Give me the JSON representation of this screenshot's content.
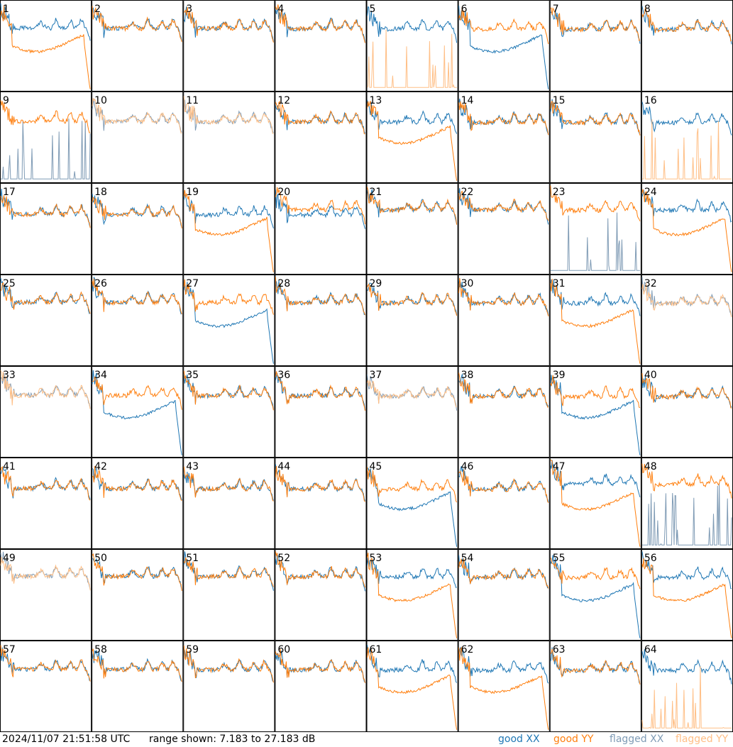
{
  "chart_data": {
    "type": "line",
    "grid": {
      "rows": 8,
      "cols": 8
    },
    "panels": [
      1,
      2,
      3,
      4,
      5,
      6,
      7,
      8,
      9,
      10,
      11,
      12,
      13,
      14,
      15,
      16,
      17,
      18,
      19,
      20,
      21,
      22,
      23,
      24,
      25,
      26,
      27,
      28,
      29,
      30,
      31,
      32,
      33,
      34,
      35,
      36,
      37,
      38,
      39,
      40,
      41,
      42,
      43,
      44,
      45,
      46,
      47,
      48,
      49,
      50,
      51,
      52,
      53,
      54,
      55,
      56,
      57,
      58,
      59,
      60,
      61,
      62,
      63,
      64
    ],
    "flags": {
      "flagged_both": [
        10,
        11,
        32,
        33,
        37,
        49
      ],
      "flagged_xx": [
        9,
        23,
        48
      ],
      "flagged_yy": [
        5,
        16,
        64
      ],
      "xx_drop": [
        6,
        27,
        34,
        39,
        45,
        55
      ],
      "yy_drop": [
        1,
        13,
        19,
        24,
        31,
        47,
        53,
        56,
        61,
        62
      ]
    },
    "timestamp": "2024/11/07 21:51:58 UTC",
    "range_text": "range shown: 7.183 to 27.183 dB",
    "range_db": [
      7.183,
      27.183
    ],
    "legend": [
      {
        "prefix": "good",
        "pol": "XX",
        "color": "#1f77b4"
      },
      {
        "prefix": "good",
        "pol": "YY",
        "color": "#ff7f0e"
      },
      {
        "prefix": "flagged",
        "pol": "XX",
        "color": "#7f9bb5"
      },
      {
        "prefix": "flagged",
        "pol": "YY",
        "color": "#ffbf86"
      }
    ]
  }
}
